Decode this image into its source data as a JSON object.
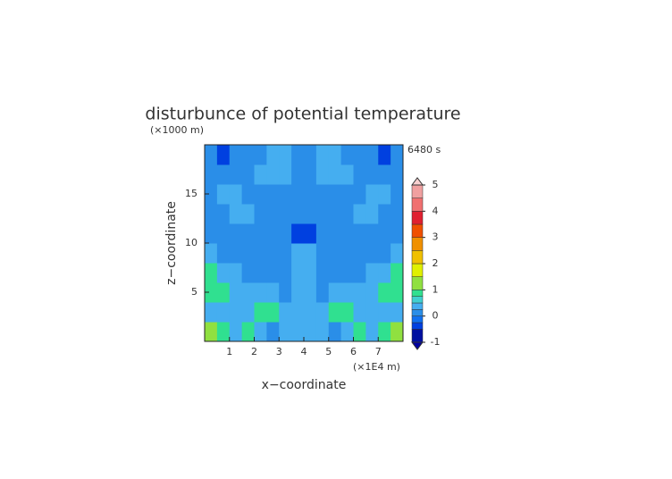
{
  "chart_data": {
    "type": "contour",
    "title": "disturbunce of potential temperature",
    "y_unit": "(×1000 m)",
    "x_unit": "(×1E4 m)",
    "time_label": "6480 s",
    "xlabel": "x−coordinate",
    "ylabel": "z−coordinate",
    "xlim": [
      0,
      8
    ],
    "ylim": [
      0,
      20
    ],
    "xticks": [
      1,
      2,
      3,
      4,
      5,
      6,
      7
    ],
    "yticks": [
      5,
      10,
      15
    ],
    "x": [
      0.25,
      0.75,
      1.25,
      1.75,
      2.25,
      2.75,
      3.25,
      3.75,
      4.25,
      4.75,
      5.25,
      5.75,
      6.25,
      6.75,
      7.25,
      7.75
    ],
    "y": [
      1,
      3,
      5,
      7,
      9,
      11,
      13,
      15,
      17,
      19
    ],
    "z": [
      [
        1.2,
        0.8,
        0.3,
        0.8,
        0.3,
        0.1,
        0.3,
        0.3,
        0.3,
        0.3,
        0.1,
        0.3,
        0.8,
        0.3,
        0.8,
        1.2
      ],
      [
        0.3,
        0.3,
        0.3,
        0.3,
        0.8,
        0.8,
        0.3,
        0.3,
        0.3,
        0.3,
        0.8,
        0.8,
        0.3,
        0.3,
        0.3,
        0.3
      ],
      [
        0.8,
        0.8,
        0.3,
        0.3,
        0.3,
        0.3,
        0.1,
        0.3,
        0.3,
        0.1,
        0.3,
        0.3,
        0.3,
        0.3,
        0.8,
        0.8
      ],
      [
        0.8,
        0.3,
        0.3,
        0.1,
        0.1,
        0.1,
        0.1,
        0.3,
        0.3,
        0.1,
        0.1,
        0.1,
        0.1,
        0.3,
        0.3,
        0.8
      ],
      [
        0.3,
        0.1,
        0.1,
        0.1,
        0.1,
        0.1,
        0.1,
        0.3,
        0.3,
        0.1,
        0.1,
        0.1,
        0.1,
        0.1,
        0.1,
        0.3
      ],
      [
        0.1,
        0.1,
        0.1,
        0.1,
        0.1,
        0.1,
        0.1,
        -0.3,
        -0.3,
        0.1,
        0.1,
        0.1,
        0.1,
        0.1,
        0.1,
        0.1
      ],
      [
        0.1,
        0.1,
        0.3,
        0.3,
        0.1,
        0.1,
        0.1,
        0.1,
        0.1,
        0.1,
        0.1,
        0.1,
        0.3,
        0.3,
        0.1,
        0.1
      ],
      [
        0.1,
        0.3,
        0.3,
        0.1,
        0.1,
        0.1,
        0.1,
        0.1,
        0.1,
        0.1,
        0.1,
        0.1,
        0.1,
        0.3,
        0.3,
        0.1
      ],
      [
        0.1,
        0.1,
        0.1,
        0.1,
        0.3,
        0.3,
        0.3,
        0.1,
        0.1,
        0.3,
        0.3,
        0.3,
        0.1,
        0.1,
        0.1,
        0.1
      ],
      [
        0.1,
        -0.3,
        0.1,
        0.1,
        0.1,
        0.3,
        0.3,
        0.1,
        0.1,
        0.3,
        0.3,
        0.1,
        0.1,
        0.1,
        -0.3,
        0.1
      ]
    ],
    "levels": [
      -1,
      -0.5,
      -0.25,
      0,
      0.25,
      0.5,
      0.75,
      1,
      1.5,
      2,
      2.5,
      3,
      3.5,
      4,
      4.5,
      5
    ],
    "colors": [
      "#0010a0",
      "#0040e0",
      "#1070f0",
      "#2a8ee8",
      "#45aef0",
      "#40d0d0",
      "#30e090",
      "#90e040",
      "#e0f000",
      "#f0c000",
      "#f09000",
      "#f05000",
      "#e02030",
      "#f07070",
      "#f0a0a0"
    ],
    "under_color": "#0000a0",
    "over_color": "#f8d0d0",
    "cbar_ticks": [
      -1,
      0,
      1,
      2,
      3,
      4,
      5
    ]
  }
}
